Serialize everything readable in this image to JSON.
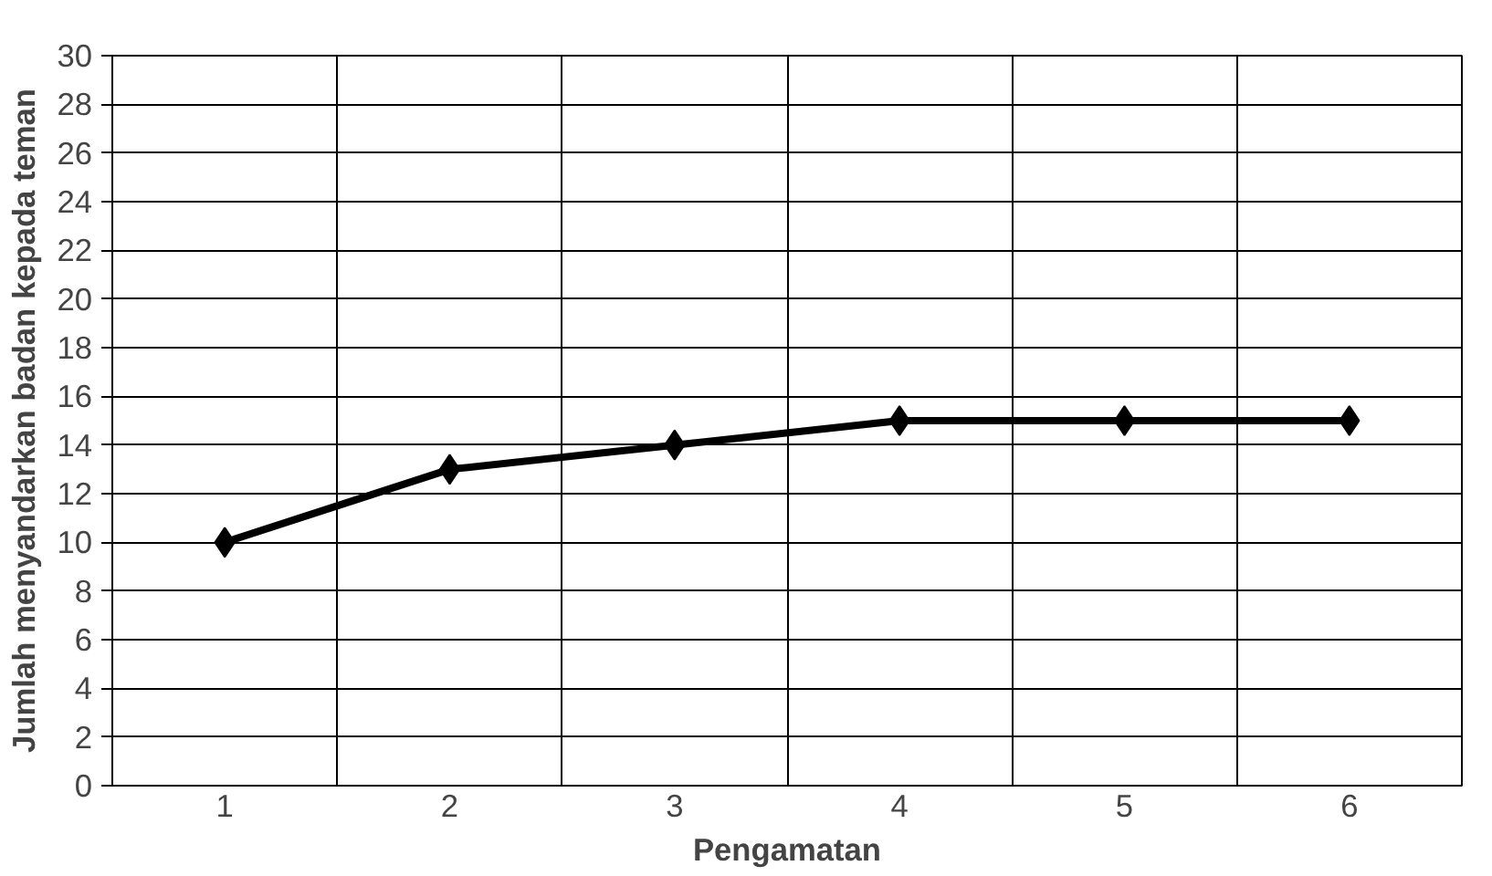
{
  "chart_data": {
    "type": "line",
    "xlabel": "Pengamatan",
    "ylabel": "Jumlah menyandarkan badan kepada teman",
    "categories": [
      "1",
      "2",
      "3",
      "4",
      "5",
      "6"
    ],
    "series": [
      {
        "color": "#000000",
        "values": [
          10,
          13,
          14,
          15,
          15,
          15
        ]
      }
    ],
    "ylim": [
      0,
      30
    ],
    "yticks": [
      0,
      2,
      4,
      6,
      8,
      10,
      12,
      14,
      16,
      18,
      20,
      22,
      24,
      26,
      28,
      30
    ],
    "grid": true,
    "marker": "diamond",
    "line_style": "solid"
  }
}
